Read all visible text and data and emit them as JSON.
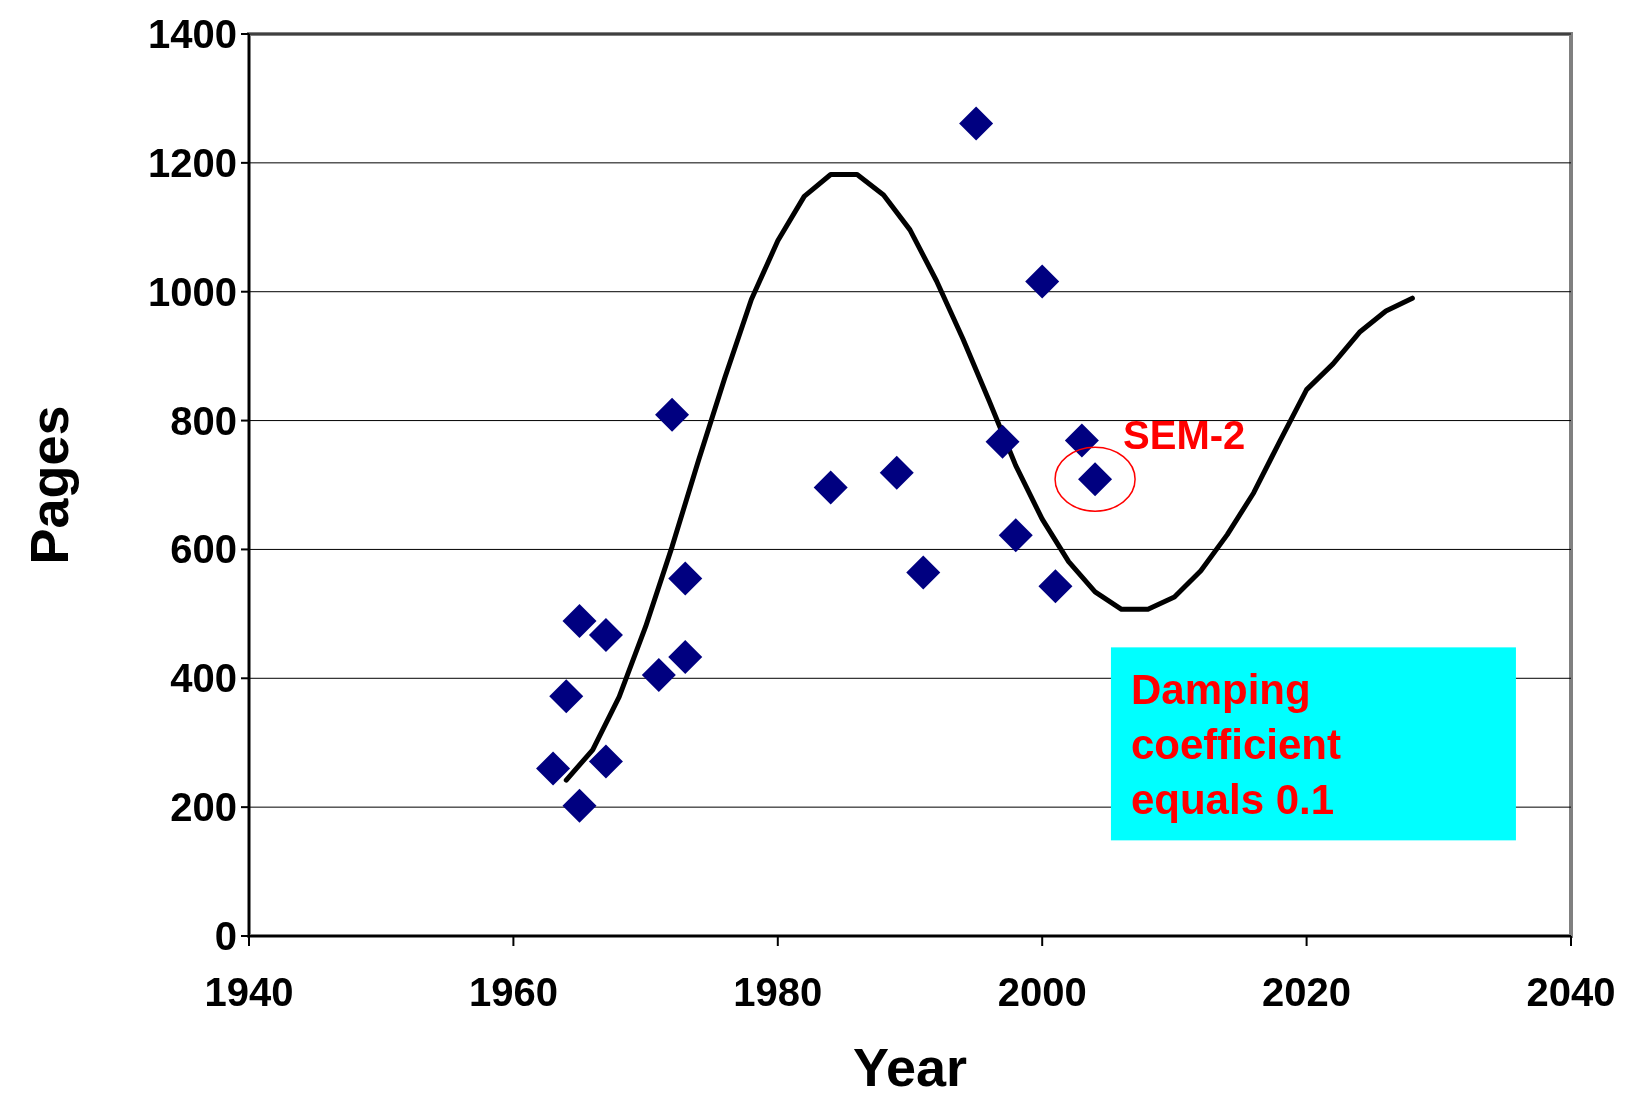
{
  "chart_data": {
    "type": "scatter",
    "xlabel": "Year",
    "ylabel": "Pages",
    "xlim": [
      1940,
      2040
    ],
    "xticks": [
      1940,
      1960,
      1980,
      2000,
      2020,
      2040
    ],
    "ylim": [
      0,
      1400
    ],
    "yticks": [
      0,
      200,
      400,
      600,
      800,
      1000,
      1200,
      1400
    ],
    "grid": "y",
    "series": [
      {
        "marker": "diamond",
        "color": "#000080",
        "x": [
          1963,
          1964,
          1965,
          1965,
          1967,
          1967,
          1971,
          1972,
          1973,
          1973,
          1984,
          1989,
          1991,
          1995,
          1997,
          1998,
          2000,
          2001,
          2003,
          2004
        ],
        "values": [
          260,
          372,
          202,
          489,
          467,
          271,
          405,
          809,
          555,
          433,
          696,
          719,
          564,
          1261,
          767,
          622,
          1016,
          543,
          769,
          709
        ]
      },
      {
        "type": "line",
        "marker": "none",
        "color": "#000000",
        "line_style": "solid",
        "x": [
          1964,
          1966,
          1968,
          1970,
          1972,
          1974,
          1976,
          1978,
          1980,
          1982,
          1984,
          1986,
          1988,
          1990,
          1992,
          1994,
          1996,
          1998,
          2000,
          2002,
          2004,
          2006,
          2008,
          2010,
          2012,
          2014,
          2016,
          2018,
          2020,
          2022,
          2024,
          2026,
          2028
        ],
        "values": [
          242,
          289,
          371,
          480,
          604,
          738,
          867,
          988,
          1079,
          1148,
          1182,
          1182,
          1150,
          1096,
          1017,
          927,
          830,
          730,
          647,
          581,
          534,
          507,
          507,
          526,
          567,
          623,
          688,
          769,
          848,
          888,
          937,
          970,
          990
        ]
      }
    ],
    "annotations": [
      {
        "text": "SEM-2",
        "x": 2004,
        "y": 709
      },
      "Damping coefficient equals 0.1"
    ]
  }
}
